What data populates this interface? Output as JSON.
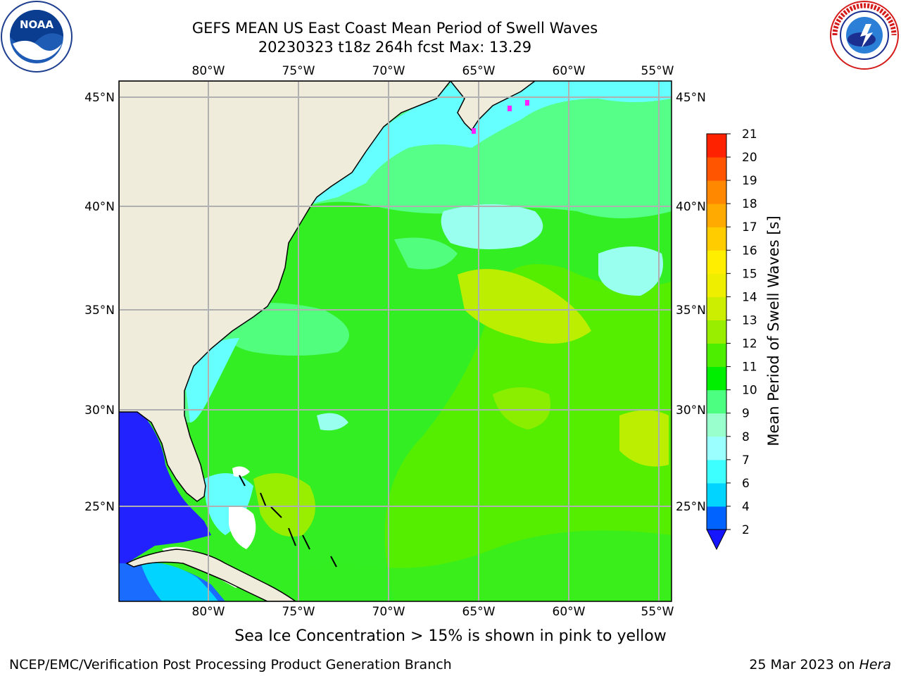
{
  "title": {
    "line1": "GEFS MEAN US East Coast Mean Period of Swell Waves",
    "line2": "20230323 t18z 264h fcst   Max: 13.29"
  },
  "logos": {
    "left": {
      "icon": "noaa-logo",
      "text": "NOAA",
      "ring_text": "NATIONAL OCEANIC AND ATMOSPHERIC ADMINISTRATION · U.S. DEPARTMENT OF COMMERCE"
    },
    "right": {
      "icon": "nws-logo",
      "ring_text": "NATIONAL WEATHER SERVICE"
    }
  },
  "map": {
    "lon_labels": [
      "80°W",
      "75°W",
      "70°W",
      "65°W",
      "60°W",
      "55°W"
    ],
    "lat_labels": [
      "45°N",
      "40°N",
      "35°N",
      "30°N",
      "25°N"
    ],
    "land_color": "#efecdc",
    "grid_color": "#b0b0b0",
    "regions_legend_note": "mean swell period field"
  },
  "colorbar": {
    "title": "Mean Period of Swell Waves [s]",
    "labels": [
      "2",
      "4",
      "6",
      "7",
      "8",
      "9",
      "10",
      "11",
      "12",
      "13",
      "14",
      "15",
      "16",
      "17",
      "18",
      "19",
      "20",
      "21"
    ],
    "colors": [
      "#0063ff",
      "#00d4ff",
      "#3dffff",
      "#9cffff",
      "#99ffcc",
      "#4cff80",
      "#00ee00",
      "#4dee00",
      "#99ee00",
      "#ccee00",
      "#eeee00",
      "#ffee00",
      "#ffcc00",
      "#ffaa00",
      "#ff8800",
      "#ff5500",
      "#ff2200"
    ],
    "under_color": "#1515ff"
  },
  "footer": {
    "sea_ice_note": "Sea Ice Concentration > 15% is shown in pink to yellow",
    "left": "NCEP/EMC/Verification Post Processing Product Generation Branch",
    "right_date": "25 Mar 2023 on",
    "right_host": "Hera"
  }
}
